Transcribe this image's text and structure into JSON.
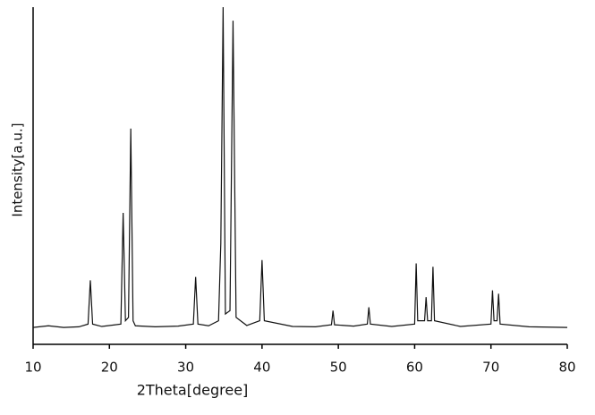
{
  "chart_data": {
    "type": "line",
    "x_label": "2Theta[degree]",
    "y_label": "Intensity[a.u.]",
    "x": [
      10,
      12,
      14,
      16,
      17.2,
      17.5,
      17.8,
      19,
      21.5,
      21.8,
      22.1,
      22.5,
      22.8,
      23.1,
      23.4,
      26,
      29,
      31,
      31.3,
      31.6,
      33,
      34.3,
      34.6,
      34.9,
      35.2,
      35.8,
      36.2,
      36.6,
      38,
      39.7,
      40,
      40.3,
      44,
      47,
      49.1,
      49.3,
      49.5,
      52,
      53.8,
      54,
      54.2,
      57,
      60,
      60.2,
      60.4,
      61.3,
      61.5,
      61.7,
      62.2,
      62.4,
      62.6,
      66,
      70,
      70.2,
      70.4,
      70.8,
      71,
      71.2,
      75,
      80
    ],
    "values": [
      5,
      5.5,
      5,
      5.2,
      6,
      19,
      6,
      5.3,
      6,
      39,
      7,
      8,
      64,
      7,
      5.5,
      5.2,
      5.4,
      6,
      20,
      6,
      5.5,
      7,
      30,
      100,
      9,
      10,
      96,
      8,
      5.6,
      7,
      25,
      7,
      5.3,
      5.2,
      5.8,
      10,
      5.8,
      5.4,
      6,
      11,
      6,
      5.3,
      6,
      24,
      7,
      7,
      14,
      7,
      7,
      23,
      7,
      5.3,
      6,
      16,
      7,
      7,
      15,
      6,
      5.2,
      5
    ],
    "color": "#111111",
    "xlim": [
      10,
      80
    ],
    "xticks": [
      10,
      20,
      30,
      40,
      50,
      60,
      70,
      80
    ],
    "ylim": [
      0,
      100
    ]
  }
}
